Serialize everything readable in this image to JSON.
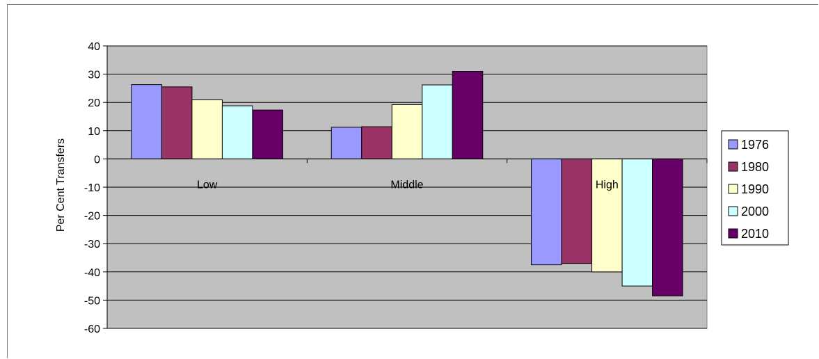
{
  "chart_data": {
    "type": "bar",
    "title": "",
    "xlabel": "",
    "ylabel": "Per Cent Transfers",
    "ylim": [
      -60,
      40
    ],
    "yticks": [
      40,
      30,
      20,
      10,
      0,
      -10,
      -20,
      -30,
      -40,
      -50,
      -60
    ],
    "categories": [
      "Low",
      "Middle",
      "High"
    ],
    "grid": true,
    "legend_position": "right",
    "series": [
      {
        "name": "1976",
        "color": "#9999ff",
        "values": [
          26.3,
          11.2,
          -37.5
        ]
      },
      {
        "name": "1980",
        "color": "#993366",
        "values": [
          25.5,
          11.4,
          -37.0
        ]
      },
      {
        "name": "1990",
        "color": "#ffffcc",
        "values": [
          20.9,
          19.2,
          -40.0
        ]
      },
      {
        "name": "2000",
        "color": "#ccffff",
        "values": [
          18.8,
          26.2,
          -45.0
        ]
      },
      {
        "name": "2010",
        "color": "#660066",
        "values": [
          17.3,
          31.0,
          -48.5
        ]
      }
    ],
    "plot_background": "#c0c0c0"
  }
}
